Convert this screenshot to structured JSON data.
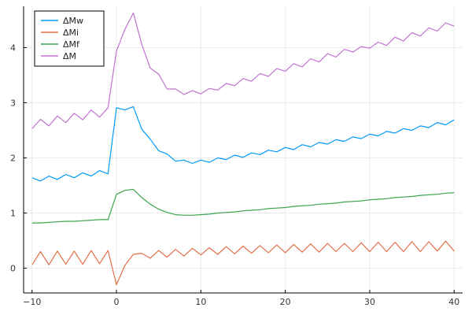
{
  "chart_data": {
    "type": "line",
    "title": "",
    "xlabel": "",
    "ylabel": "",
    "xlim": [
      -11,
      41
    ],
    "ylim": [
      -0.45,
      4.75
    ],
    "xticks": [
      -10,
      0,
      10,
      20,
      30,
      40
    ],
    "yticks": [
      0,
      1,
      2,
      3,
      4
    ],
    "xtick_labels": [
      "−10",
      "0",
      "10",
      "20",
      "30",
      "40"
    ],
    "ytick_labels": [
      "0",
      "1",
      "2",
      "3",
      "4"
    ],
    "grid": true,
    "legend_position": "top-left",
    "x": [
      -10,
      -9,
      -8,
      -7,
      -6,
      -5,
      -4,
      -3,
      -2,
      -1,
      0,
      1,
      2,
      3,
      4,
      5,
      6,
      7,
      8,
      9,
      10,
      11,
      12,
      13,
      14,
      15,
      16,
      17,
      18,
      19,
      20,
      21,
      22,
      23,
      24,
      25,
      26,
      27,
      28,
      29,
      30,
      31,
      32,
      33,
      34,
      35,
      36,
      37,
      38,
      39,
      40
    ],
    "series": [
      {
        "name": "ΔMw",
        "color": "#009AFA",
        "values": [
          1.64,
          1.58,
          1.67,
          1.61,
          1.7,
          1.64,
          1.73,
          1.67,
          1.77,
          1.71,
          2.91,
          2.87,
          2.93,
          2.52,
          2.34,
          2.13,
          2.07,
          1.94,
          1.96,
          1.9,
          1.96,
          1.92,
          2.0,
          1.97,
          2.05,
          2.01,
          2.09,
          2.06,
          2.14,
          2.11,
          2.19,
          2.15,
          2.24,
          2.2,
          2.28,
          2.25,
          2.33,
          2.3,
          2.38,
          2.35,
          2.43,
          2.4,
          2.48,
          2.45,
          2.53,
          2.5,
          2.58,
          2.55,
          2.64,
          2.6,
          2.69
        ]
      },
      {
        "name": "ΔMi",
        "color": "#E36F47",
        "values": [
          0.06,
          0.3,
          0.06,
          0.31,
          0.07,
          0.31,
          0.07,
          0.32,
          0.08,
          0.32,
          -0.3,
          0.05,
          0.25,
          0.27,
          0.18,
          0.32,
          0.2,
          0.34,
          0.22,
          0.36,
          0.24,
          0.37,
          0.25,
          0.39,
          0.26,
          0.4,
          0.27,
          0.41,
          0.28,
          0.42,
          0.28,
          0.43,
          0.29,
          0.44,
          0.29,
          0.45,
          0.3,
          0.45,
          0.3,
          0.46,
          0.3,
          0.47,
          0.3,
          0.47,
          0.3,
          0.48,
          0.3,
          0.48,
          0.31,
          0.49,
          0.31
        ]
      },
      {
        "name": "ΔMf",
        "color": "#3EA44E",
        "values": [
          0.82,
          0.82,
          0.83,
          0.84,
          0.85,
          0.85,
          0.86,
          0.87,
          0.88,
          0.88,
          1.34,
          1.41,
          1.43,
          1.28,
          1.16,
          1.07,
          1.01,
          0.97,
          0.96,
          0.96,
          0.97,
          0.98,
          1.0,
          1.01,
          1.02,
          1.04,
          1.05,
          1.06,
          1.08,
          1.09,
          1.1,
          1.12,
          1.13,
          1.14,
          1.16,
          1.17,
          1.18,
          1.2,
          1.21,
          1.22,
          1.24,
          1.25,
          1.26,
          1.28,
          1.29,
          1.3,
          1.32,
          1.33,
          1.34,
          1.36,
          1.37
        ]
      },
      {
        "name": "ΔM",
        "color": "#C271D2",
        "values": [
          2.53,
          2.7,
          2.58,
          2.76,
          2.64,
          2.81,
          2.69,
          2.87,
          2.74,
          2.91,
          3.94,
          4.33,
          4.63,
          4.06,
          3.63,
          3.52,
          3.25,
          3.25,
          3.15,
          3.22,
          3.16,
          3.26,
          3.23,
          3.35,
          3.31,
          3.44,
          3.39,
          3.53,
          3.48,
          3.62,
          3.57,
          3.71,
          3.65,
          3.8,
          3.74,
          3.89,
          3.83,
          3.97,
          3.92,
          4.02,
          3.99,
          4.1,
          4.04,
          4.19,
          4.12,
          4.27,
          4.21,
          4.36,
          4.3,
          4.45,
          4.39
        ]
      }
    ]
  }
}
